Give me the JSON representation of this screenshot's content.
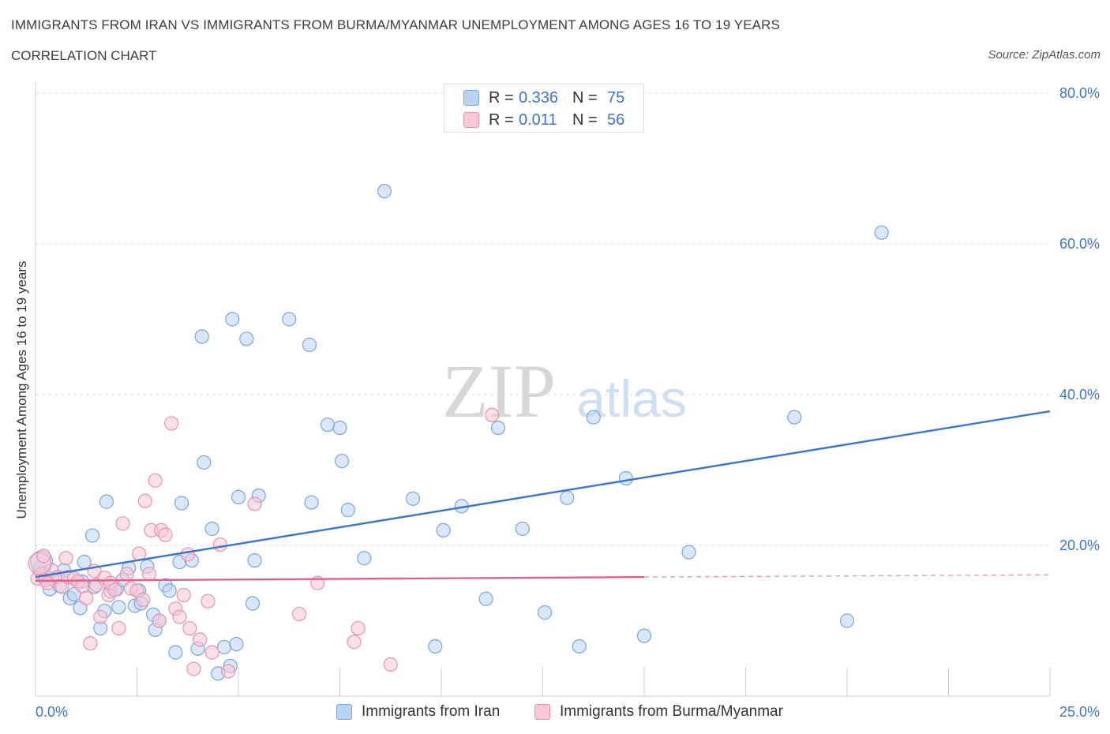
{
  "title": "IMMIGRANTS FROM IRAN VS IMMIGRANTS FROM BURMA/MYANMAR UNEMPLOYMENT AMONG AGES 16 TO 19 YEARS",
  "subtitle": "CORRELATION CHART",
  "source": "Source: ZipAtlas.com",
  "watermark": {
    "zip": "ZIP",
    "atlas": "atlas"
  },
  "legend_top": [
    {
      "r_label": "R =",
      "r_value": "0.336",
      "n_label": "N =",
      "n_value": "75",
      "color": "#b9d3f3"
    },
    {
      "r_label": "R =",
      "r_value": "0.011",
      "n_label": "N =",
      "n_value": "56",
      "color": "#f8c7d6"
    }
  ],
  "legend_bottom": [
    {
      "label": "Immigrants from Iran",
      "color": "#b9d3f3"
    },
    {
      "label": "Immigrants from Burma/Myanmar",
      "color": "#f8c7d6"
    }
  ],
  "chart_data": {
    "type": "scatter",
    "ylabel": "Unemployment Among Ages 16 to 19 years",
    "xlim": [
      0,
      25
    ],
    "ylim": [
      0,
      80
    ],
    "x_tick_labels": [
      {
        "value": 0,
        "label": "0.0%"
      },
      {
        "value": 25,
        "label": "25.0%"
      }
    ],
    "y_tick_labels": [
      {
        "value": 20,
        "label": "20.0%"
      },
      {
        "value": 40,
        "label": "40.0%"
      },
      {
        "value": 60,
        "label": "60.0%"
      },
      {
        "value": 80,
        "label": "80.0%"
      }
    ],
    "grid": true,
    "series": [
      {
        "name": "Immigrants from Iran",
        "color": "#7aa6dc",
        "fill": "#b9d3f3",
        "trend": {
          "x0": 0,
          "y0": 15.8,
          "x1": 25,
          "y1": 37.8,
          "color": "#3a74d0"
        },
        "points": [
          [
            0.1,
            17.0
          ],
          [
            0.2,
            16.3
          ],
          [
            0.35,
            14.2
          ],
          [
            0.4,
            15.6
          ],
          [
            0.6,
            14.6
          ],
          [
            0.7,
            16.7
          ],
          [
            0.85,
            13.0
          ],
          [
            0.95,
            13.5
          ],
          [
            1.1,
            11.7
          ],
          [
            1.15,
            15.2
          ],
          [
            1.2,
            17.8
          ],
          [
            1.4,
            21.3
          ],
          [
            1.45,
            14.5
          ],
          [
            1.6,
            9.0
          ],
          [
            1.7,
            11.3
          ],
          [
            1.75,
            25.8
          ],
          [
            1.85,
            13.9
          ],
          [
            2.0,
            14.2
          ],
          [
            2.05,
            11.8
          ],
          [
            2.15,
            15.4
          ],
          [
            2.3,
            17.0
          ],
          [
            2.45,
            12.0
          ],
          [
            2.55,
            14.0
          ],
          [
            2.6,
            12.3
          ],
          [
            2.75,
            17.2
          ],
          [
            2.9,
            10.8
          ],
          [
            2.95,
            8.8
          ],
          [
            3.05,
            10.0
          ],
          [
            3.2,
            14.7
          ],
          [
            3.3,
            14.0
          ],
          [
            3.45,
            5.8
          ],
          [
            3.55,
            17.8
          ],
          [
            3.6,
            25.6
          ],
          [
            3.85,
            18.0
          ],
          [
            4.0,
            6.3
          ],
          [
            4.1,
            47.7
          ],
          [
            4.15,
            31.0
          ],
          [
            4.35,
            22.2
          ],
          [
            4.5,
            3.0
          ],
          [
            4.65,
            6.5
          ],
          [
            4.8,
            4.0
          ],
          [
            4.85,
            50.0
          ],
          [
            4.95,
            6.9
          ],
          [
            5.0,
            26.4
          ],
          [
            5.2,
            47.4
          ],
          [
            5.35,
            12.3
          ],
          [
            5.4,
            18.0
          ],
          [
            5.5,
            26.6
          ],
          [
            6.25,
            50.0
          ],
          [
            6.75,
            46.6
          ],
          [
            6.8,
            25.7
          ],
          [
            7.2,
            36.0
          ],
          [
            7.5,
            35.6
          ],
          [
            7.55,
            31.2
          ],
          [
            7.7,
            24.7
          ],
          [
            8.1,
            18.3
          ],
          [
            8.6,
            67.0
          ],
          [
            9.3,
            26.2
          ],
          [
            9.85,
            6.6
          ],
          [
            10.05,
            22.0
          ],
          [
            10.5,
            25.2
          ],
          [
            11.1,
            12.9
          ],
          [
            11.4,
            35.6
          ],
          [
            12.0,
            22.2
          ],
          [
            12.55,
            11.1
          ],
          [
            13.1,
            26.3
          ],
          [
            13.4,
            6.6
          ],
          [
            13.75,
            37.0
          ],
          [
            14.55,
            28.9
          ],
          [
            15.0,
            8.0
          ],
          [
            16.1,
            19.1
          ],
          [
            18.7,
            37.0
          ],
          [
            20.0,
            10.0
          ],
          [
            20.85,
            61.5
          ],
          [
            0.15,
            17.8
          ]
        ]
      },
      {
        "name": "Immigrants from Burma/Myanmar",
        "color": "#e893ad",
        "fill": "#f8c7d6",
        "trend": {
          "x0": 0,
          "y0": 15.3,
          "x1": 15.0,
          "y1": 15.8,
          "color": "#e0628c",
          "dashed_to": {
            "x": 25,
            "y": 16.1
          }
        },
        "points": [
          [
            0.05,
            15.6
          ],
          [
            0.15,
            16.2
          ],
          [
            0.25,
            15.4
          ],
          [
            0.4,
            16.7
          ],
          [
            0.55,
            15.8
          ],
          [
            0.65,
            14.5
          ],
          [
            0.75,
            18.3
          ],
          [
            0.8,
            15.8
          ],
          [
            0.95,
            15.6
          ],
          [
            1.05,
            15.2
          ],
          [
            1.15,
            14.6
          ],
          [
            1.25,
            13.0
          ],
          [
            1.35,
            7.0
          ],
          [
            1.45,
            16.6
          ],
          [
            1.5,
            14.7
          ],
          [
            1.6,
            10.5
          ],
          [
            1.7,
            15.7
          ],
          [
            1.8,
            13.4
          ],
          [
            1.85,
            15.0
          ],
          [
            1.95,
            14.1
          ],
          [
            2.05,
            9.0
          ],
          [
            2.15,
            22.9
          ],
          [
            2.25,
            16.2
          ],
          [
            2.35,
            14.3
          ],
          [
            2.5,
            14.0
          ],
          [
            2.55,
            18.9
          ],
          [
            2.65,
            12.8
          ],
          [
            2.7,
            25.9
          ],
          [
            2.8,
            16.2
          ],
          [
            2.85,
            22.0
          ],
          [
            2.95,
            28.6
          ],
          [
            3.05,
            10.0
          ],
          [
            3.1,
            22.0
          ],
          [
            3.2,
            21.4
          ],
          [
            3.35,
            36.2
          ],
          [
            3.45,
            11.6
          ],
          [
            3.55,
            10.5
          ],
          [
            3.65,
            13.4
          ],
          [
            3.75,
            18.8
          ],
          [
            3.8,
            9.0
          ],
          [
            3.9,
            3.6
          ],
          [
            4.05,
            7.5
          ],
          [
            4.25,
            12.6
          ],
          [
            4.35,
            5.8
          ],
          [
            4.55,
            20.1
          ],
          [
            4.75,
            3.3
          ],
          [
            5.4,
            25.5
          ],
          [
            6.5,
            10.9
          ],
          [
            6.95,
            15.0
          ],
          [
            7.85,
            7.2
          ],
          [
            7.95,
            9.0
          ],
          [
            8.75,
            4.2
          ],
          [
            11.25,
            37.3
          ],
          [
            0.1,
            17.6
          ],
          [
            0.2,
            18.6
          ],
          [
            0.3,
            15.0
          ]
        ]
      }
    ]
  }
}
